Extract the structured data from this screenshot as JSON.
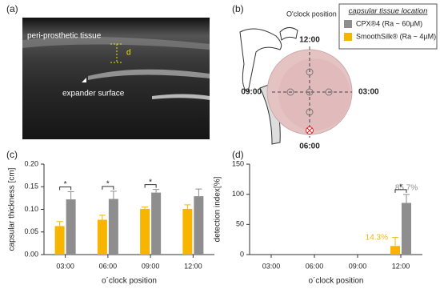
{
  "panels": {
    "a": {
      "label": "(a)",
      "tissue": "peri-prosthetic tissue",
      "distance": "d",
      "surface": "expander surface"
    },
    "b": {
      "label": "(b)",
      "title": "O'clock position",
      "positions": [
        "12:00",
        "03:00",
        "06:00",
        "09:00"
      ]
    },
    "c": {
      "label": "(c)"
    },
    "d": {
      "label": "(d)"
    }
  },
  "legend": {
    "title": "capsular tissue location"
  },
  "chart_data": [
    {
      "type": "bar",
      "xlabel": "o´clock position",
      "ylabel": "capsular thickness [cm]",
      "categories": [
        "03:00",
        "06:00",
        "09:00",
        "12:00"
      ],
      "series": [
        {
          "name": "SmoothSilk® (Ra ~ 4µM)",
          "color": "#f7b500",
          "values": [
            0.063,
            0.077,
            0.101,
            0.101
          ],
          "errors": [
            0.01,
            0.01,
            0.004,
            0.009
          ]
        },
        {
          "name": "CPX®4 (Ra ~ 60µM)",
          "color": "#8e8e8e",
          "values": [
            0.122,
            0.123,
            0.137,
            0.129
          ],
          "errors": [
            0.017,
            0.017,
            0.007,
            0.016
          ]
        }
      ],
      "significance": [
        "*",
        "*",
        "*",
        null
      ],
      "ylim": [
        0,
        0.2
      ],
      "yticks": [
        {
          "value": 0,
          "label": "0.00"
        },
        {
          "value": 0.05,
          "label": "0.05"
        },
        {
          "value": 0.1,
          "label": "0.10"
        },
        {
          "value": 0.15,
          "label": "0.15"
        },
        {
          "value": 0.2,
          "label": "0.20"
        }
      ]
    },
    {
      "type": "bar",
      "xlabel": "o´clock position",
      "ylabel": "detection index[%]",
      "categories": [
        "03:00",
        "06:00",
        "09:00",
        "12:00"
      ],
      "series": [
        {
          "color": "#f7b500",
          "values": [
            0,
            0,
            0,
            14.3
          ],
          "errors": [
            null,
            null,
            null,
            14
          ],
          "value_labels": [
            null,
            null,
            null,
            "14.3%"
          ]
        },
        {
          "color": "#8e8e8e",
          "values": [
            0,
            0,
            0,
            85.7
          ],
          "errors": [
            null,
            null,
            null,
            14
          ],
          "value_labels": [
            null,
            null,
            null,
            "85.7%"
          ]
        }
      ],
      "significance": [
        null,
        null,
        null,
        "*"
      ],
      "ylim": [
        0,
        150
      ],
      "yticks": [
        0,
        50,
        100,
        150
      ]
    }
  ]
}
